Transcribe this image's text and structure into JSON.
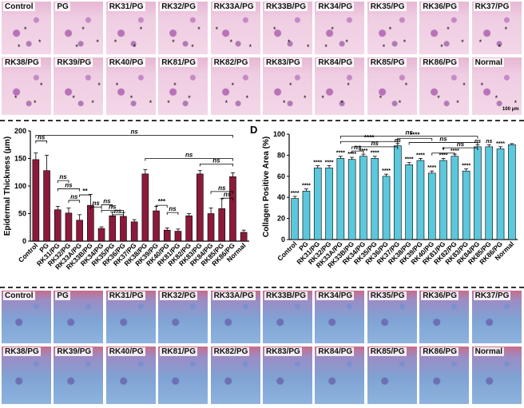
{
  "he_labels": [
    "Control",
    "PG",
    "RK31/PG",
    "RK32/PG",
    "RK33A/PG",
    "RK33B/PG",
    "RK34/PG",
    "RK35/PG",
    "RK36/PG",
    "RK37/PG",
    "RK38/PG",
    "RK39/PG",
    "RK40/PG",
    "RK81/PG",
    "RK82/PG",
    "RK83/PG",
    "RK84/PG",
    "RK85/PG",
    "RK86/PG",
    "Normal"
  ],
  "mt_labels": [
    "Control",
    "PG",
    "RK31/PG",
    "RK32/PG",
    "RK33A/PG",
    "RK33B/PG",
    "RK34/PG",
    "RK35/PG",
    "RK36/PG",
    "RK37/PG",
    "RK38/PG",
    "RK39/PG",
    "RK40/PG",
    "RK81/PG",
    "RK82/PG",
    "RK83/PG",
    "RK84/PG",
    "RK85/PG",
    "RK86/PG",
    "Normal"
  ],
  "star_symbol": "*",
  "scale_bar_label": "100 μm",
  "panel_d_letter": "D",
  "colors": {
    "bar_left": "#8b1a3a",
    "bar_right": "#5bc8dc",
    "he": "#e9bfd8",
    "mt": "#7fa3d4"
  },
  "chart_data": [
    {
      "type": "bar",
      "ylabel": "Epidermal Thickness (μm)",
      "ylim": [
        0,
        200
      ],
      "yticks": [
        0,
        50,
        100,
        150,
        200
      ],
      "categories": [
        "Control",
        "PG",
        "RK31/PG",
        "RK32/PG",
        "RK33A/PG",
        "RK33B/PG",
        "RK34/PG",
        "RK35/PG",
        "RK36/PG",
        "RK37/PG",
        "RK38/PG",
        "RK39/PG",
        "RK40/PG",
        "RK81/PG",
        "RK82/PG",
        "RK83/PG",
        "RK84/PG",
        "RK85/PG",
        "RK86/PG",
        "Normal"
      ],
      "values": [
        148,
        128,
        57,
        51,
        38,
        65,
        23,
        46,
        45,
        35,
        122,
        55,
        20,
        18,
        46,
        122,
        50,
        59,
        117,
        16
      ],
      "errors": [
        12,
        28,
        6,
        9,
        10,
        20,
        3,
        7,
        7,
        4,
        8,
        8,
        4,
        4,
        4,
        6,
        10,
        18,
        7,
        4
      ],
      "annotations": [
        "ns",
        "ns",
        "ns",
        "ns",
        "**",
        "ns",
        "ns",
        "ns",
        "ns",
        "ns",
        "ns",
        "ns",
        "ns",
        "***",
        "ns",
        "ns"
      ]
    },
    {
      "type": "bar",
      "ylabel": "Collagen Positive Area (%)",
      "ylim": [
        0,
        100
      ],
      "yticks": [
        0,
        20,
        40,
        60,
        80,
        100
      ],
      "categories": [
        "Control",
        "PG",
        "RK31/PG",
        "RK32/PG",
        "RK33A/PG",
        "RK33B/PG",
        "RK34/PG",
        "RK35/PG",
        "RK36/PG",
        "RK37/PG",
        "RK38/PG",
        "RK39/PG",
        "RK40/PG",
        "RK81/PG",
        "RK82/PG",
        "RK83/PG",
        "RK84/PG",
        "RK85/PG",
        "RK86/PG",
        "Normal"
      ],
      "values": [
        39,
        46,
        68,
        68,
        77,
        76,
        79,
        77,
        60,
        89,
        71,
        75,
        63,
        75,
        79,
        65,
        88,
        88,
        86,
        90
      ],
      "errors": [
        2,
        2,
        2,
        2,
        2,
        2,
        2,
        2,
        2,
        2,
        2,
        2,
        2,
        2,
        2,
        2,
        2,
        2,
        2,
        1
      ],
      "bar_labels": [
        "****",
        "****",
        "****",
        "****",
        "****",
        "****",
        "****",
        "****",
        "****",
        "ns",
        "****",
        "****",
        "****",
        "****",
        "****",
        "****",
        "ns",
        "ns",
        "****",
        ""
      ],
      "annotations": [
        "ns",
        "****",
        "ns",
        "ns",
        "****",
        "ns",
        "ns",
        "*"
      ]
    }
  ]
}
